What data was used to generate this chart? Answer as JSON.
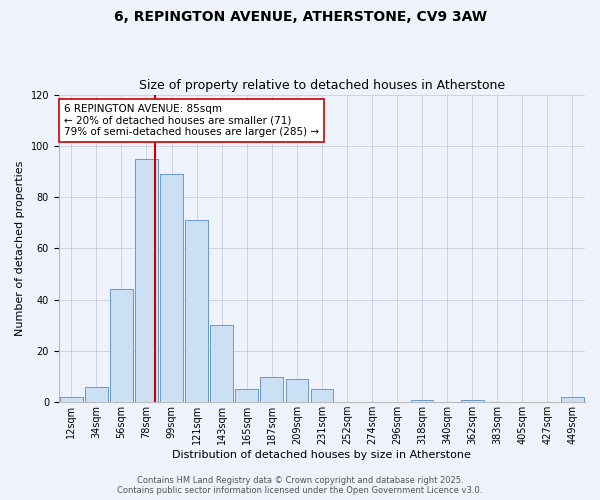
{
  "title_line1": "6, REPINGTON AVENUE, ATHERSTONE, CV9 3AW",
  "title_line2": "Size of property relative to detached houses in Atherstone",
  "xlabel": "Distribution of detached houses by size in Atherstone",
  "ylabel": "Number of detached properties",
  "bar_categories": [
    "12sqm",
    "34sqm",
    "56sqm",
    "78sqm",
    "99sqm",
    "121sqm",
    "143sqm",
    "165sqm",
    "187sqm",
    "209sqm",
    "231sqm",
    "252sqm",
    "274sqm",
    "296sqm",
    "318sqm",
    "340sqm",
    "362sqm",
    "383sqm",
    "405sqm",
    "427sqm",
    "449sqm"
  ],
  "bar_values": [
    2,
    6,
    44,
    95,
    89,
    71,
    30,
    5,
    10,
    9,
    5,
    0,
    0,
    0,
    1,
    0,
    1,
    0,
    0,
    0,
    2
  ],
  "bar_color": "#cce0f5",
  "bar_edge_color": "#6699cc",
  "property_line_color": "#cc0000",
  "annotation_line1": "6 REPINGTON AVENUE: 85sqm",
  "annotation_line2": "← 20% of detached houses are smaller (71)",
  "annotation_line3": "79% of semi-detached houses are larger (285) →",
  "annotation_box_color": "#ffffff",
  "annotation_box_edge_color": "#cc0000",
  "ylim": [
    0,
    120
  ],
  "yticks": [
    0,
    20,
    40,
    60,
    80,
    100,
    120
  ],
  "footer_line1": "Contains HM Land Registry data © Crown copyright and database right 2025.",
  "footer_line2": "Contains public sector information licensed under the Open Government Licence v3.0.",
  "bg_color": "#eef2fa",
  "plot_bg_color": "#eef2fa",
  "grid_color": "#ccccdd",
  "title_fontsize": 10,
  "subtitle_fontsize": 9,
  "axis_label_fontsize": 8,
  "tick_fontsize": 7,
  "annotation_fontsize": 7.5,
  "footer_fontsize": 6
}
